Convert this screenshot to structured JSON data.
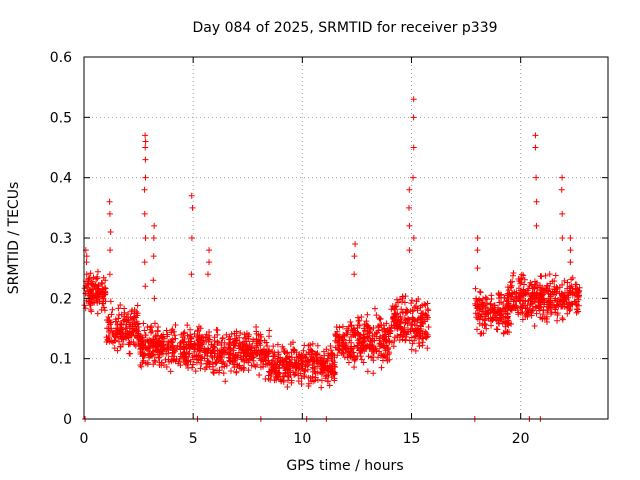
{
  "colors": {
    "series": "#ff0000",
    "grid": "#a0a0a0",
    "axis": "#000000",
    "background": "#ffffff"
  },
  "chart_data": {
    "type": "scatter",
    "title": "Day 084 of 2025, SRMTID for receiver p339",
    "xlabel": "GPS time / hours",
    "ylabel": "SRMTID / TECUs",
    "xlim": [
      0,
      24
    ],
    "ylim": [
      0,
      0.6
    ],
    "xticks": [
      0,
      5,
      10,
      15,
      20
    ],
    "yticks": [
      0,
      0.1,
      0.2,
      0.3,
      0.4,
      0.5,
      0.6
    ],
    "xtick_labels": [
      "0",
      "5",
      "10",
      "15",
      "20"
    ],
    "ytick_labels": [
      "0",
      "0.1",
      "0.2",
      "0.3",
      "0.4",
      "0.5",
      "0.6"
    ],
    "grid": true,
    "marker": "+",
    "series": [
      {
        "name": "SRMTID",
        "segments": [
          {
            "x_range": [
              0.0,
              1.0
            ],
            "level": 0.21,
            "spread": 0.05
          },
          {
            "x_range": [
              1.0,
              2.5
            ],
            "level": 0.15,
            "spread": 0.05
          },
          {
            "x_range": [
              2.5,
              5.5
            ],
            "level": 0.12,
            "spread": 0.05
          },
          {
            "x_range": [
              5.5,
              8.5
            ],
            "level": 0.11,
            "spread": 0.05
          },
          {
            "x_range": [
              8.5,
              11.5
            ],
            "level": 0.09,
            "spread": 0.045
          },
          {
            "x_range": [
              11.5,
              14.0
            ],
            "level": 0.13,
            "spread": 0.06
          },
          {
            "x_range": [
              14.0,
              15.8
            ],
            "level": 0.16,
            "spread": 0.06
          },
          {
            "x_range": [
              17.9,
              19.5
            ],
            "level": 0.18,
            "spread": 0.05
          },
          {
            "x_range": [
              19.5,
              22.7
            ],
            "level": 0.2,
            "spread": 0.05
          }
        ],
        "spikes": [
          {
            "x": 0.1,
            "ys": [
              0.24,
              0.26,
              0.27,
              0.28
            ]
          },
          {
            "x": 1.2,
            "ys": [
              0.24,
              0.28,
              0.31,
              0.34,
              0.36
            ]
          },
          {
            "x": 2.8,
            "ys": [
              0.22,
              0.26,
              0.3,
              0.34,
              0.38,
              0.4,
              0.43,
              0.45,
              0.46,
              0.47
            ]
          },
          {
            "x": 3.2,
            "ys": [
              0.2,
              0.23,
              0.27,
              0.3,
              0.32
            ]
          },
          {
            "x": 4.95,
            "ys": [
              0.24,
              0.3,
              0.35,
              0.37
            ]
          },
          {
            "x": 5.7,
            "ys": [
              0.24,
              0.26,
              0.28
            ]
          },
          {
            "x": 12.4,
            "ys": [
              0.24,
              0.27,
              0.29
            ]
          },
          {
            "x": 14.9,
            "ys": [
              0.28,
              0.32,
              0.35,
              0.38
            ]
          },
          {
            "x": 15.1,
            "ys": [
              0.3,
              0.4,
              0.45,
              0.5,
              0.53
            ]
          },
          {
            "x": 18.0,
            "ys": [
              0.25,
              0.28,
              0.3
            ]
          },
          {
            "x": 20.7,
            "ys": [
              0.32,
              0.36,
              0.4,
              0.45,
              0.47
            ]
          },
          {
            "x": 21.9,
            "ys": [
              0.3,
              0.34,
              0.38,
              0.4
            ]
          },
          {
            "x": 22.3,
            "ys": [
              0.26,
              0.28,
              0.3
            ]
          }
        ],
        "zero_points": [
          0.05,
          5.2,
          8.1,
          10.2,
          11.1,
          17.9,
          20.4,
          20.9
        ]
      }
    ]
  }
}
